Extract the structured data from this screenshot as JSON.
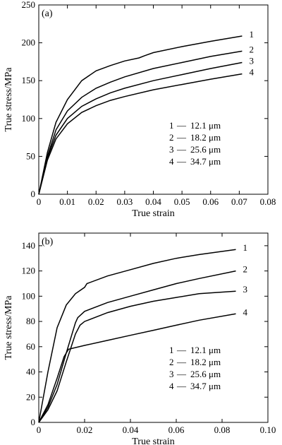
{
  "chart_data": [
    {
      "type": "line",
      "panel_label": "(a)",
      "xlabel": "True strain",
      "ylabel": "True stress/MPa",
      "xlim": [
        0,
        0.08
      ],
      "ylim": [
        0,
        250
      ],
      "xticks": [
        0,
        0.01,
        0.02,
        0.03,
        0.04,
        0.05,
        0.06,
        0.07,
        0.08
      ],
      "xtick_labels": [
        "0",
        "0.01",
        "0.02",
        "0.03",
        "0.04",
        "0.05",
        "0.06",
        "0.07",
        "0.08"
      ],
      "yticks": [
        0,
        50,
        100,
        150,
        200,
        250
      ],
      "ytick_labels": [
        "0",
        "50",
        "100",
        "150",
        "200",
        "250"
      ],
      "legend": [
        {
          "num": "1",
          "dash": "—",
          "text": "12.1 μm"
        },
        {
          "num": "2",
          "dash": "—",
          "text": "18.2 μm"
        },
        {
          "num": "3",
          "dash": "—",
          "text": "25.6 μm"
        },
        {
          "num": "4",
          "dash": "—",
          "text": "34.7 μm"
        }
      ],
      "series": [
        {
          "label": "1",
          "x": [
            0,
            0.003,
            0.006,
            0.01,
            0.015,
            0.02,
            0.025,
            0.03,
            0.035,
            0.037,
            0.04,
            0.05,
            0.06,
            0.071
          ],
          "y": [
            0,
            55,
            95,
            125,
            150,
            163,
            170,
            176,
            180,
            183,
            187,
            195,
            202,
            209
          ]
        },
        {
          "label": "2",
          "x": [
            0,
            0.003,
            0.006,
            0.01,
            0.015,
            0.02,
            0.025,
            0.03,
            0.04,
            0.05,
            0.06,
            0.071
          ],
          "y": [
            0,
            50,
            85,
            110,
            128,
            140,
            148,
            155,
            166,
            174,
            182,
            189
          ]
        },
        {
          "label": "3",
          "x": [
            0,
            0.003,
            0.006,
            0.01,
            0.015,
            0.02,
            0.025,
            0.03,
            0.04,
            0.05,
            0.06,
            0.071
          ],
          "y": [
            0,
            48,
            78,
            100,
            116,
            126,
            134,
            140,
            150,
            158,
            166,
            174
          ]
        },
        {
          "label": "4",
          "x": [
            0,
            0.003,
            0.006,
            0.01,
            0.015,
            0.02,
            0.025,
            0.03,
            0.04,
            0.05,
            0.06,
            0.071
          ],
          "y": [
            0,
            45,
            73,
            93,
            108,
            117,
            124,
            129,
            138,
            145,
            152,
            159
          ]
        }
      ]
    },
    {
      "type": "line",
      "panel_label": "(b)",
      "xlabel": "True strain",
      "ylabel": "True stress/MPa",
      "xlim": [
        0,
        0.1
      ],
      "ylim": [
        0,
        150
      ],
      "xticks": [
        0,
        0.02,
        0.04,
        0.06,
        0.08,
        0.1
      ],
      "xtick_labels": [
        "0",
        "0.02",
        "0.04",
        "0.06",
        "0.08",
        "0.10"
      ],
      "yticks": [
        0,
        20,
        40,
        60,
        80,
        100,
        120,
        140
      ],
      "ytick_labels": [
        "0",
        "20",
        "40",
        "60",
        "80",
        "100",
        "120",
        "140"
      ],
      "legend": [
        {
          "num": "1",
          "dash": "—",
          "text": "12.1 μm"
        },
        {
          "num": "2",
          "dash": "—",
          "text": "18.2 μm"
        },
        {
          "num": "3",
          "dash": "—",
          "text": "25.6 μm"
        },
        {
          "num": "4",
          "dash": "—",
          "text": "34.7 μm"
        }
      ],
      "series": [
        {
          "label": "1",
          "x": [
            0,
            0.004,
            0.008,
            0.012,
            0.016,
            0.02,
            0.021,
            0.03,
            0.04,
            0.05,
            0.06,
            0.07,
            0.086
          ],
          "y": [
            0,
            40,
            75,
            93,
            102,
            107,
            110,
            116,
            121,
            126,
            130,
            133,
            137
          ]
        },
        {
          "label": "2",
          "x": [
            0,
            0.004,
            0.008,
            0.012,
            0.016,
            0.017,
            0.02,
            0.03,
            0.04,
            0.05,
            0.06,
            0.07,
            0.086
          ],
          "y": [
            0,
            12,
            30,
            55,
            79,
            83,
            88,
            95,
            100,
            105,
            110,
            114,
            120
          ]
        },
        {
          "label": "3",
          "x": [
            0,
            0.004,
            0.008,
            0.012,
            0.016,
            0.018,
            0.02,
            0.03,
            0.04,
            0.05,
            0.06,
            0.07,
            0.086
          ],
          "y": [
            0,
            10,
            25,
            48,
            70,
            77,
            80,
            87,
            92,
            96,
            99,
            102,
            104
          ]
        },
        {
          "label": "4",
          "x": [
            0,
            0.004,
            0.008,
            0.011,
            0.013,
            0.02,
            0.03,
            0.04,
            0.05,
            0.06,
            0.07,
            0.086
          ],
          "y": [
            0,
            14,
            35,
            52,
            58,
            61,
            65,
            69,
            73,
            77,
            81,
            86
          ]
        }
      ]
    }
  ]
}
